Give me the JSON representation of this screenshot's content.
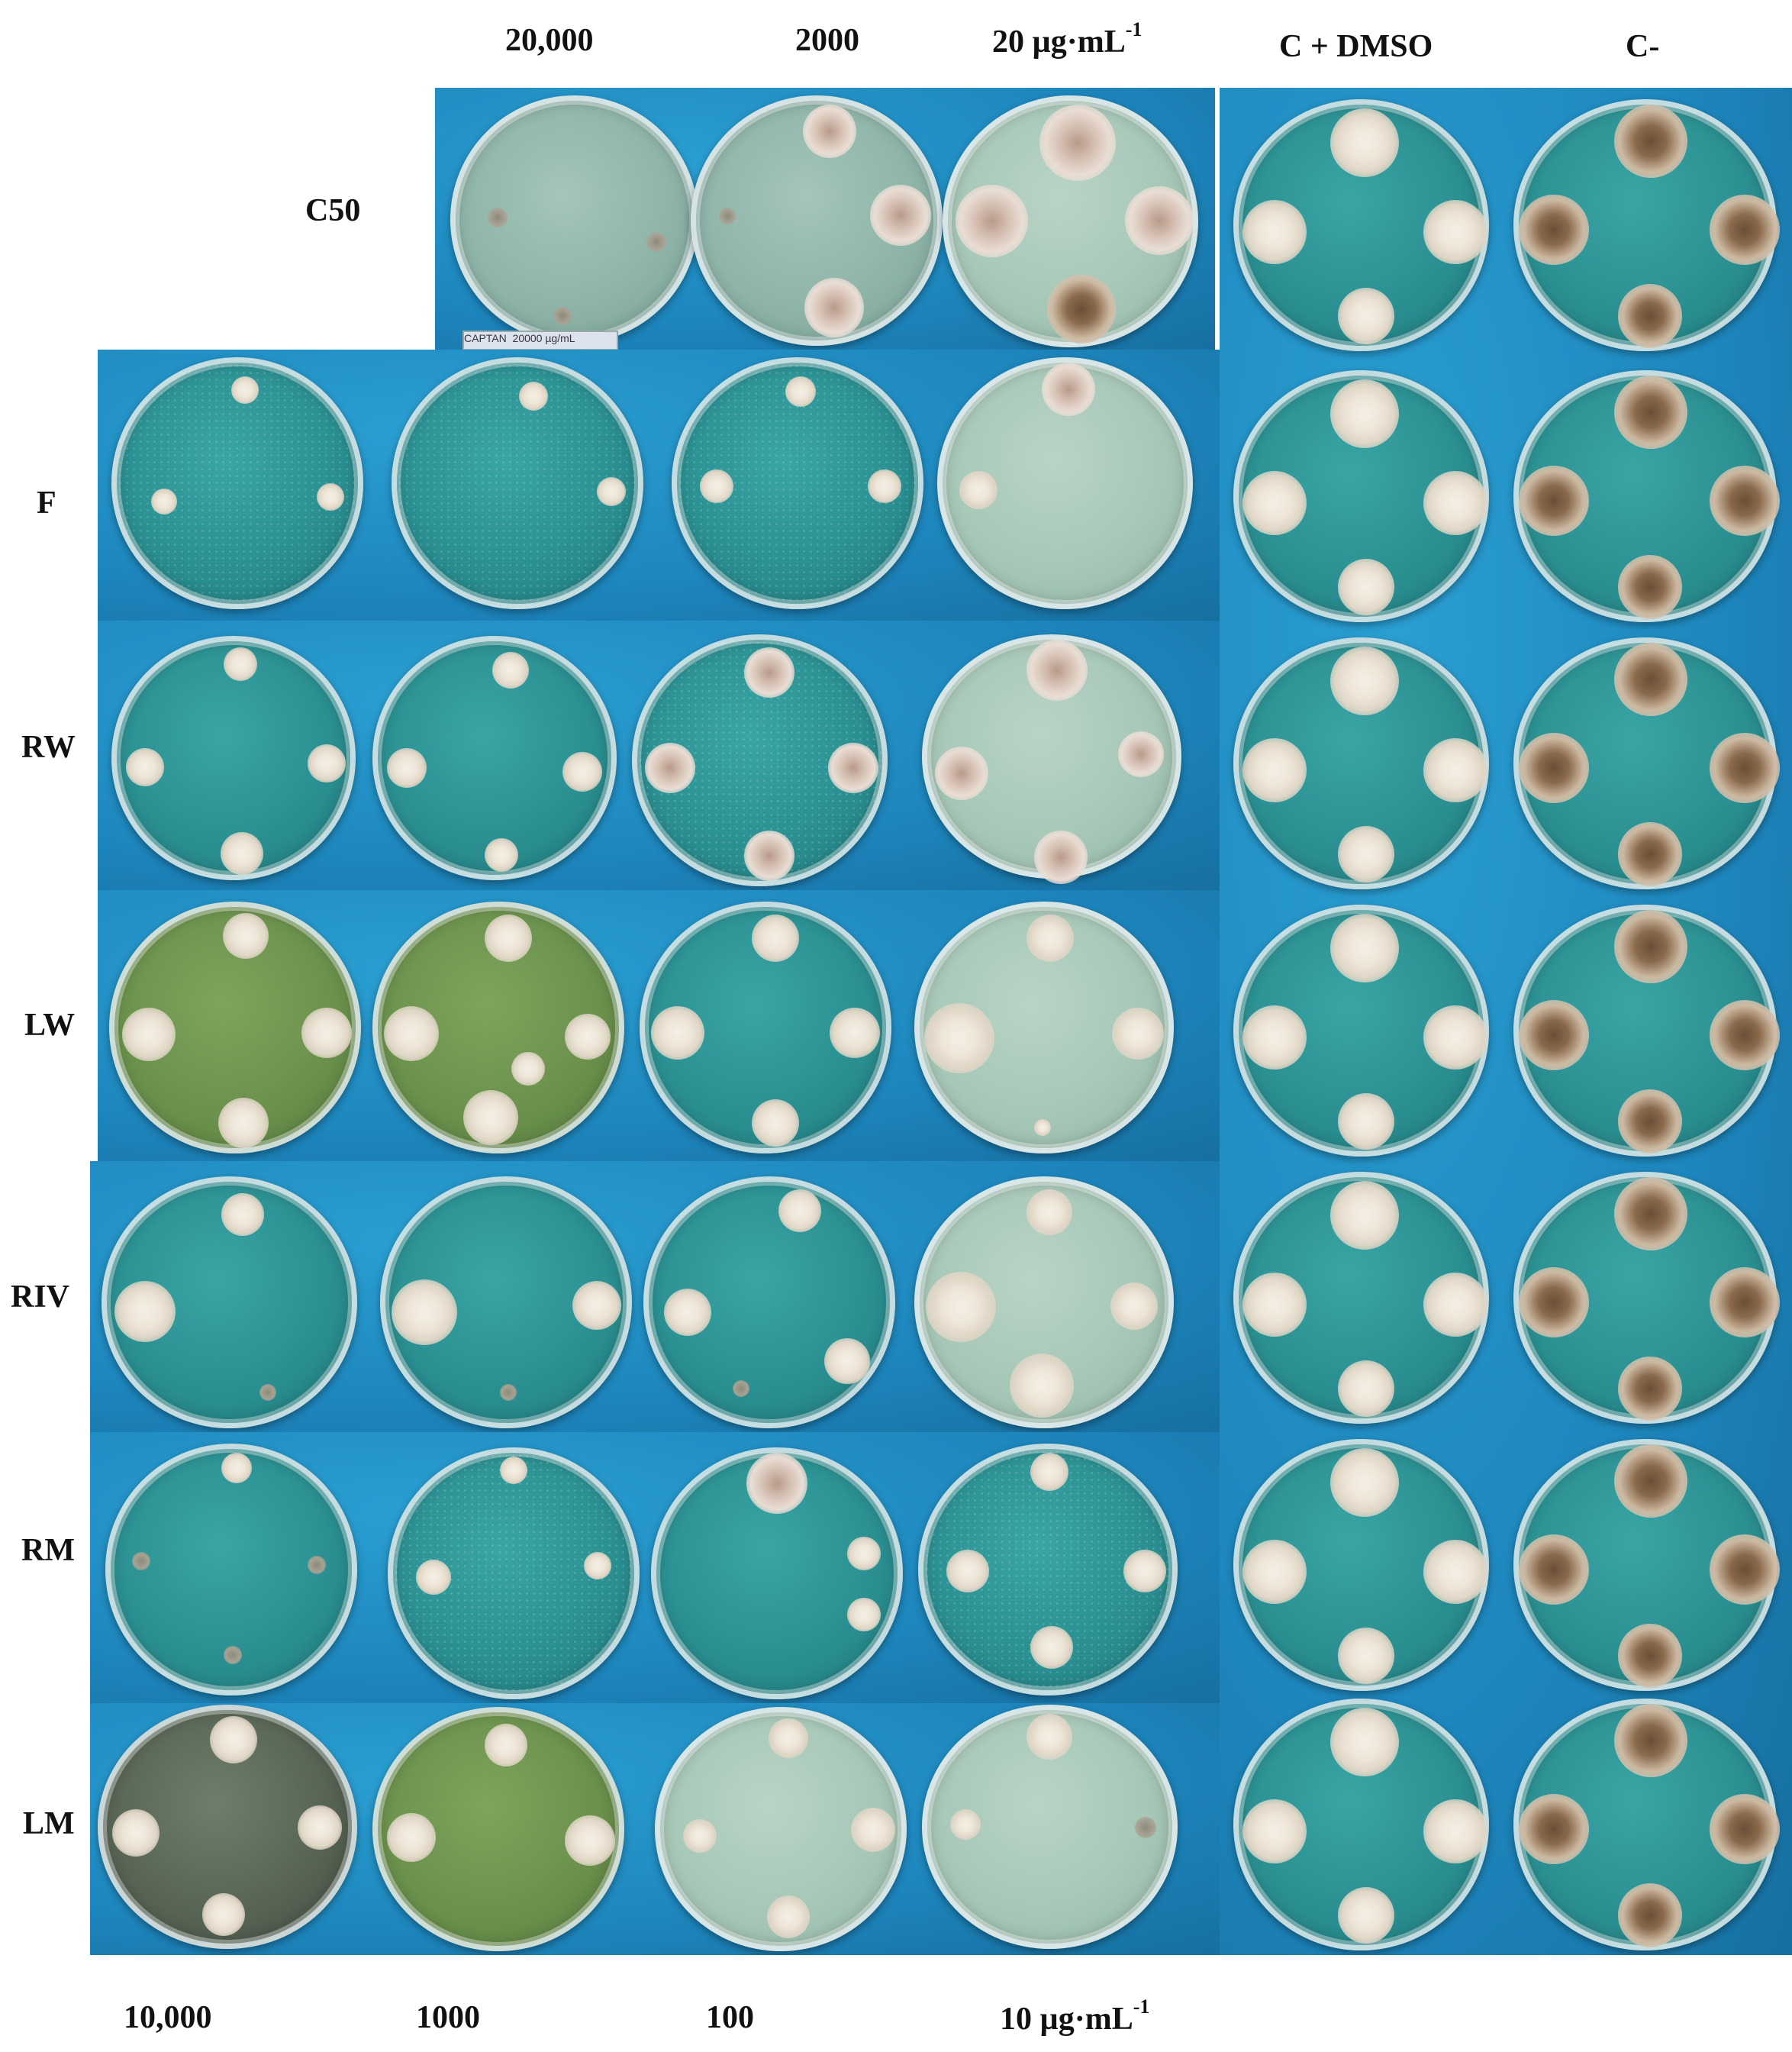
{
  "top_labels": {
    "c20000": "20,000",
    "c2000": "2000",
    "c20": "20 µg·mL",
    "c20_exp": "-1",
    "c_dmso": "C + DMSO",
    "c_neg": "C-"
  },
  "row_labels": {
    "c50": "C50",
    "f": "F",
    "rw": "RW",
    "lw": "LW",
    "riv": "RIV",
    "rm": "RM",
    "lm": "LM"
  },
  "bottom_labels": {
    "c10000": "10,000",
    "c1000": "1000",
    "c100": "100",
    "c10": "10 µg·mL",
    "c10_exp": "-1"
  },
  "sticker": {
    "text1": "CAPTAN",
    "text2": "20000 µg/mL"
  }
}
